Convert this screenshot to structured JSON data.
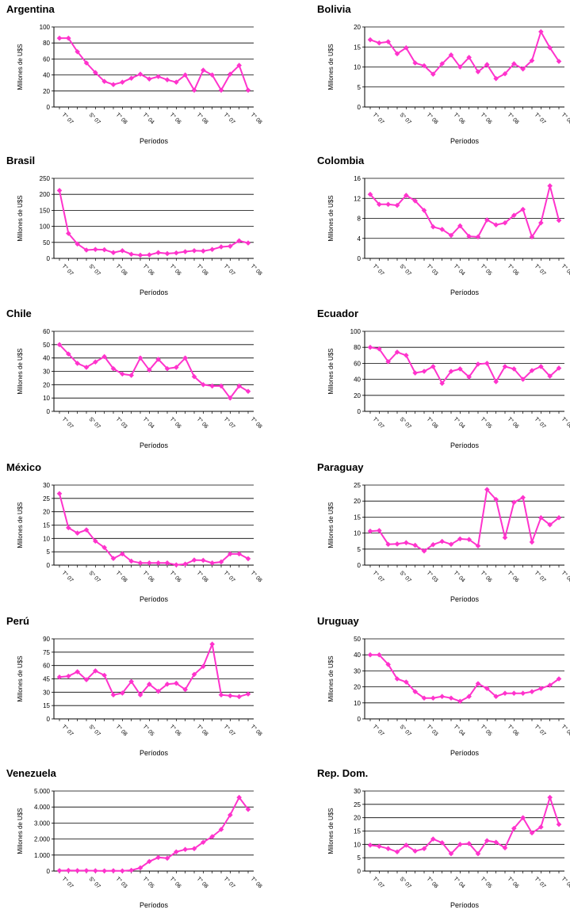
{
  "chart_data": [
    {
      "type": "line",
      "title": "Argentina",
      "ylabel": "Millones de U$S",
      "xlabel": "Períodos",
      "ylim": [
        0,
        100
      ],
      "yticks": [
        "0",
        "20",
        "40",
        "60",
        "80",
        "100"
      ],
      "tick_labels": [
        "T° 07",
        "S° 07",
        "T° 08",
        "T° 04",
        "T° 06",
        "T° 08",
        "T° 07",
        "T° 08"
      ],
      "values": [
        86,
        86,
        69,
        55,
        43,
        32,
        28,
        31,
        36,
        41,
        35,
        38,
        34,
        31,
        40,
        21,
        46,
        40,
        21,
        41,
        52,
        21
      ],
      "color": "#FF33CC"
    },
    {
      "type": "line",
      "title": "Bolivia",
      "ylabel": "Millones de U$S",
      "xlabel": "Períodos",
      "ylim": [
        0,
        20
      ],
      "yticks": [
        "0",
        "5",
        "10",
        "15",
        "20"
      ],
      "tick_labels": [
        "T° 07",
        "S° 07",
        "T° 08",
        "T° 06",
        "T° 06",
        "T° 08",
        "T° 07",
        "T° 08"
      ],
      "values": [
        16.8,
        16,
        16.3,
        13.3,
        14.8,
        11,
        10.3,
        8.2,
        10.8,
        13,
        10,
        12.4,
        8.8,
        10.6,
        7.1,
        8.3,
        10.8,
        9.5,
        11.6,
        18.8,
        14.8,
        11.4
      ],
      "color": "#FF33CC"
    },
    {
      "type": "line",
      "title": "Brasil",
      "ylabel": "Millones de U$S",
      "xlabel": "Períodos",
      "ylim": [
        0,
        250
      ],
      "yticks": [
        "0",
        "50",
        "100",
        "150",
        "200",
        "250"
      ],
      "tick_labels": [
        "T° 07",
        "S° 07",
        "T° 08",
        "T° 06",
        "T° 06",
        "T° 08",
        "T° 07",
        "T° 08"
      ],
      "values": [
        212,
        78,
        45,
        26,
        28,
        27,
        18,
        24,
        13,
        10,
        11,
        18,
        15,
        17,
        21,
        24,
        23,
        28,
        36,
        38,
        55,
        48
      ],
      "color": "#FF33CC"
    },
    {
      "type": "line",
      "title": "Colombia",
      "ylabel": "Millones de U$S",
      "xlabel": "Períodos",
      "ylim": [
        0,
        16
      ],
      "yticks": [
        "0",
        "4",
        "8",
        "12",
        "16"
      ],
      "tick_labels": [
        "T° 07",
        "S° 07",
        "T° 03",
        "T° 04",
        "T° 05",
        "T° 06",
        "T° 07",
        "T° 08"
      ],
      "values": [
        12.8,
        10.8,
        10.8,
        10.6,
        12.6,
        11.5,
        9.6,
        6.3,
        5.8,
        4.6,
        6.5,
        4.4,
        4.3,
        7.7,
        6.7,
        7.1,
        8.6,
        9.8,
        4.3,
        7.1,
        14.5,
        7.6
      ],
      "color": "#FF33CC"
    },
    {
      "type": "line",
      "title": "Chile",
      "ylabel": "Millones de U$S",
      "xlabel": "Períodos",
      "ylim": [
        0,
        60
      ],
      "yticks": [
        "0",
        "10",
        "20",
        "30",
        "40",
        "50",
        "60"
      ],
      "tick_labels": [
        "T° 07",
        "S° 07",
        "T° 03",
        "T° 04",
        "T° 06",
        "T° 06",
        "T° 07",
        "T° 08"
      ],
      "values": [
        50,
        43,
        36,
        33,
        37,
        41,
        32,
        28,
        27,
        40,
        31,
        39,
        32,
        33,
        40,
        26,
        20,
        19,
        19,
        10,
        19,
        15
      ],
      "color": "#FF33CC"
    },
    {
      "type": "line",
      "title": "Ecuador",
      "ylabel": "Millones de U$S",
      "xlabel": "Períodos",
      "ylim": [
        0,
        100
      ],
      "yticks": [
        "0",
        "20",
        "40",
        "60",
        "80",
        "100"
      ],
      "tick_labels": [
        "T° 07",
        "S° 07",
        "T° 08",
        "T° 04",
        "T° 05",
        "T° 06",
        "T° 07",
        "T° 08"
      ],
      "values": [
        80,
        78,
        62,
        74,
        70,
        48,
        50,
        56,
        35,
        50,
        53,
        43,
        59,
        60,
        37,
        56,
        53,
        40,
        51,
        56,
        44,
        54
      ],
      "color": "#FF33CC"
    },
    {
      "type": "line",
      "title": "México",
      "ylabel": "Millones de U$S",
      "xlabel": "Períodos",
      "ylim": [
        0,
        30
      ],
      "yticks": [
        "0",
        "5",
        "10",
        "15",
        "20",
        "25",
        "30"
      ],
      "tick_labels": [
        "T° 07",
        "S° 07",
        "T° 08",
        "T° 06",
        "T° 06",
        "T° 08",
        "T° 07",
        "T° 08"
      ],
      "values": [
        26.8,
        14,
        12,
        13.2,
        9,
        6.6,
        2.5,
        4.2,
        1.5,
        0.8,
        0.8,
        0.8,
        0.8,
        0.1,
        0.4,
        1.9,
        1.8,
        0.8,
        1.2,
        4.2,
        4.2,
        2.4
      ],
      "color": "#FF33CC"
    },
    {
      "type": "line",
      "title": "Paraguay",
      "ylabel": "Millones de U$S",
      "xlabel": "Períodos",
      "ylim": [
        0,
        25
      ],
      "yticks": [
        "0",
        "5",
        "10",
        "15",
        "20",
        "25"
      ],
      "tick_labels": [
        "T° 07",
        "S° 07",
        "T° 03",
        "T° 04",
        "T° 06",
        "T° 06",
        "T° 07",
        "T° 08"
      ],
      "values": [
        10.6,
        10.8,
        6.5,
        6.6,
        7,
        6.2,
        4.4,
        6.4,
        7.4,
        6.5,
        8.2,
        8,
        6,
        23.6,
        20.5,
        8.6,
        19.6,
        21.1,
        7.2,
        14.8,
        12.6,
        14.8
      ],
      "color": "#FF33CC"
    },
    {
      "type": "line",
      "title": "Perú",
      "ylabel": "Millones de U$S",
      "xlabel": "Períodos",
      "ylim": [
        0,
        90
      ],
      "yticks": [
        "0",
        "15",
        "30",
        "45",
        "60",
        "75",
        "90"
      ],
      "tick_labels": [
        "T° 07",
        "S° 07",
        "T° 08",
        "T° 05",
        "T° 06",
        "T° 08",
        "T° 07",
        "T° 08"
      ],
      "values": [
        47,
        48,
        53,
        44,
        54,
        49,
        27,
        29,
        42,
        27,
        39,
        31,
        39,
        40,
        33,
        50,
        59,
        84,
        27,
        26,
        25,
        28
      ],
      "color": "#FF33CC"
    },
    {
      "type": "line",
      "title": "Uruguay",
      "ylabel": "Millones de U$S",
      "xlabel": "Períodos",
      "ylim": [
        0,
        50
      ],
      "yticks": [
        "0",
        "10",
        "20",
        "30",
        "40",
        "50"
      ],
      "tick_labels": [
        "T° 07",
        "S° 07",
        "T° 03",
        "T° 04",
        "T° 05",
        "T° 06",
        "T° 07",
        "T° 08"
      ],
      "values": [
        40,
        40,
        34,
        25,
        23,
        17,
        13,
        13,
        14,
        13,
        11,
        14,
        22,
        19,
        14,
        16,
        16,
        16,
        17,
        19,
        21,
        25
      ],
      "color": "#FF33CC"
    },
    {
      "type": "line",
      "title": "Venezuela",
      "ylabel": "Millones de U$S",
      "xlabel": "Períodos",
      "ylim": [
        0,
        5000
      ],
      "yticks": [
        "0",
        "1.000",
        "2.000",
        "3.000",
        "4.000",
        "5.000"
      ],
      "tick_labels": [
        "T° 07",
        "S° 07",
        "T° 03",
        "T° 05",
        "T° 06",
        "T° 08",
        "T° 07",
        "T° 08"
      ],
      "values": [
        30,
        40,
        30,
        30,
        20,
        10,
        20,
        10,
        50,
        200,
        600,
        850,
        800,
        1200,
        1350,
        1400,
        1800,
        2150,
        2600,
        3500,
        4600,
        3850
      ],
      "color": "#FF33CC"
    },
    {
      "type": "line",
      "title": "Rep. Dom.",
      "ylabel": "Millones de U$S",
      "xlabel": "Períodos",
      "ylim": [
        0,
        30
      ],
      "yticks": [
        "0",
        "5",
        "10",
        "15",
        "20",
        "25",
        "30"
      ],
      "tick_labels": [
        "T° 07",
        "S° 07",
        "T° 08",
        "T° 04",
        "T° 05",
        "T° 06",
        "T° 07",
        "T° 08"
      ],
      "values": [
        9.7,
        9.3,
        8.4,
        7.2,
        9.7,
        7.5,
        8.4,
        12,
        10.6,
        6.5,
        10,
        10.3,
        6.5,
        11.4,
        10.8,
        8.7,
        16,
        20,
        14.3,
        16.5,
        27.6,
        17.5
      ],
      "color": "#FF33CC"
    }
  ]
}
